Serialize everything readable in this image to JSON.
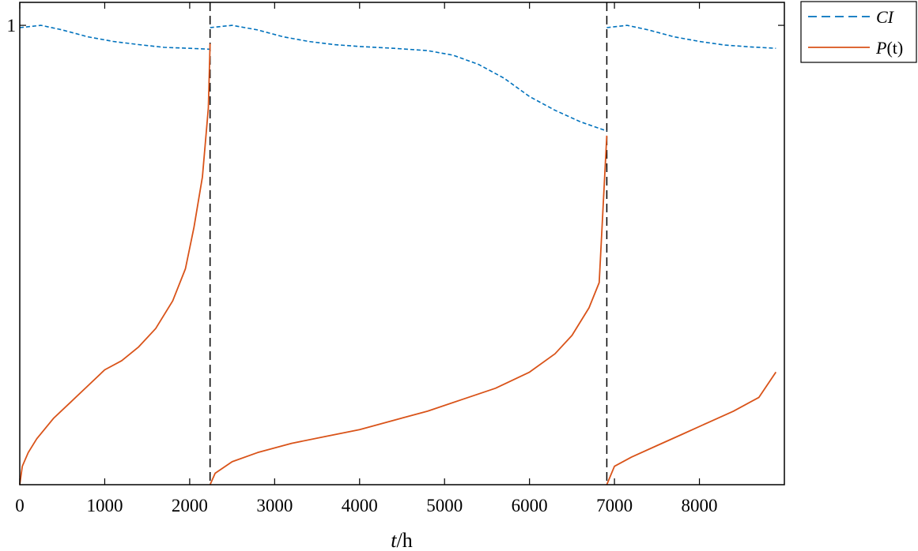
{
  "chart_data": {
    "type": "line",
    "title": "",
    "xlabel": "t/h",
    "xlabel_parts": {
      "var": "t",
      "unit": "/h"
    },
    "ylabel": "",
    "xlim": [
      0,
      9000
    ],
    "ylim": [
      0,
      1.05
    ],
    "xticks": [
      0,
      1000,
      2000,
      3000,
      4000,
      5000,
      6000,
      7000,
      8000
    ],
    "yticks": [
      1
    ],
    "grid": false,
    "legend_position": "outside-top-right",
    "vlines": [
      2240,
      6910
    ],
    "series": [
      {
        "name": "CI",
        "style": "dashed",
        "color": "#0072BD",
        "segments": [
          [
            [
              0,
              0.995
            ],
            [
              250,
              1.0
            ],
            [
              500,
              0.99
            ],
            [
              800,
              0.975
            ],
            [
              1100,
              0.965
            ],
            [
              1400,
              0.958
            ],
            [
              1700,
              0.952
            ],
            [
              2000,
              0.95
            ],
            [
              2240,
              0.948
            ]
          ],
          [
            [
              2240,
              0.995
            ],
            [
              2500,
              1.0
            ],
            [
              2800,
              0.99
            ],
            [
              3100,
              0.975
            ],
            [
              3400,
              0.965
            ],
            [
              3700,
              0.958
            ],
            [
              4000,
              0.954
            ],
            [
              4400,
              0.95
            ],
            [
              4800,
              0.945
            ],
            [
              5100,
              0.935
            ],
            [
              5400,
              0.915
            ],
            [
              5700,
              0.885
            ],
            [
              6000,
              0.845
            ],
            [
              6300,
              0.815
            ],
            [
              6600,
              0.79
            ],
            [
              6910,
              0.77
            ]
          ],
          [
            [
              6910,
              0.995
            ],
            [
              7150,
              1.0
            ],
            [
              7400,
              0.99
            ],
            [
              7700,
              0.975
            ],
            [
              8000,
              0.965
            ],
            [
              8300,
              0.957
            ],
            [
              8600,
              0.953
            ],
            [
              8900,
              0.95
            ]
          ]
        ]
      },
      {
        "name": "P(t)",
        "name_parts": {
          "var": "P",
          "arg": "(t)"
        },
        "style": "solid",
        "color": "#D95319",
        "segments": [
          [
            [
              0,
              0.0
            ],
            [
              30,
              0.04
            ],
            [
              100,
              0.07
            ],
            [
              200,
              0.1
            ],
            [
              400,
              0.145
            ],
            [
              600,
              0.18
            ],
            [
              800,
              0.215
            ],
            [
              1000,
              0.25
            ],
            [
              1200,
              0.27
            ],
            [
              1400,
              0.3
            ],
            [
              1600,
              0.34
            ],
            [
              1800,
              0.4
            ],
            [
              1950,
              0.47
            ],
            [
              2050,
              0.56
            ],
            [
              2150,
              0.67
            ],
            [
              2220,
              0.82
            ],
            [
              2240,
              0.96
            ]
          ],
          [
            [
              2240,
              0.0
            ],
            [
              2300,
              0.025
            ],
            [
              2500,
              0.05
            ],
            [
              2800,
              0.07
            ],
            [
              3200,
              0.09
            ],
            [
              3600,
              0.105
            ],
            [
              4000,
              0.12
            ],
            [
              4400,
              0.14
            ],
            [
              4800,
              0.16
            ],
            [
              5200,
              0.185
            ],
            [
              5600,
              0.21
            ],
            [
              6000,
              0.245
            ],
            [
              6300,
              0.285
            ],
            [
              6500,
              0.325
            ],
            [
              6700,
              0.385
            ],
            [
              6820,
              0.44
            ],
            [
              6910,
              0.76
            ]
          ],
          [
            [
              6910,
              0.0
            ],
            [
              7000,
              0.04
            ],
            [
              7200,
              0.06
            ],
            [
              7500,
              0.085
            ],
            [
              7800,
              0.11
            ],
            [
              8100,
              0.135
            ],
            [
              8400,
              0.16
            ],
            [
              8700,
              0.19
            ],
            [
              8900,
              0.245
            ]
          ]
        ]
      }
    ]
  }
}
